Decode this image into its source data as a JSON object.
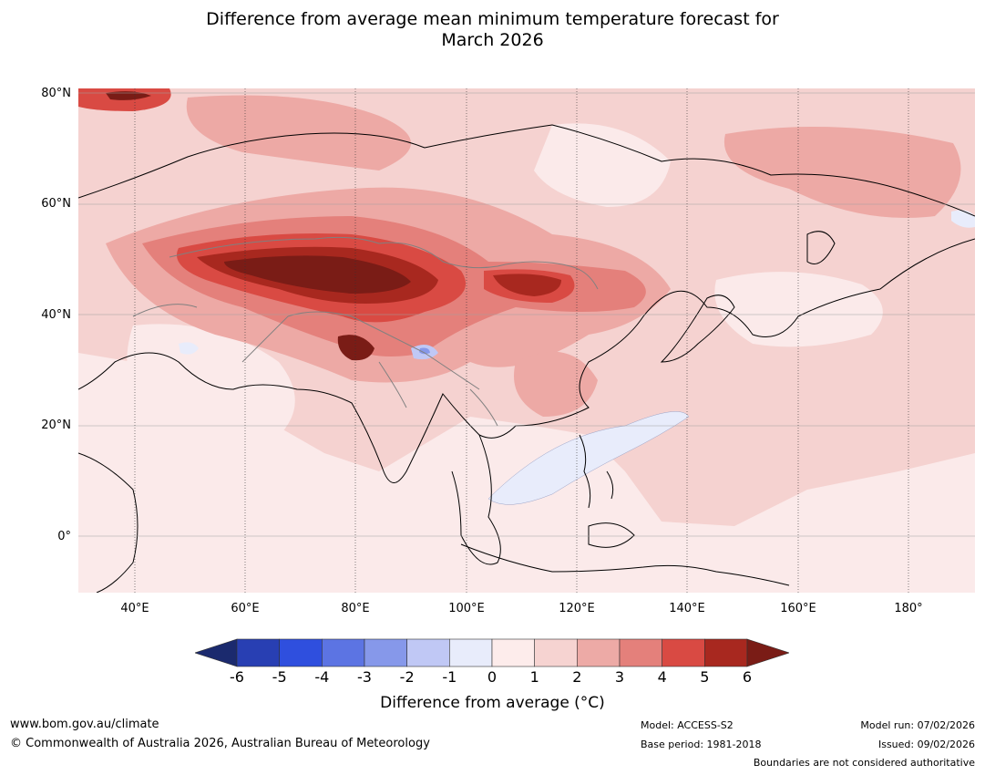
{
  "title": {
    "line1": "Difference from average mean minimum temperature forecast for",
    "line2": "March 2026"
  },
  "map": {
    "lat_labels": [
      "80°N",
      "60°N",
      "40°N",
      "20°N",
      "0°"
    ],
    "lon_labels": [
      "40°E",
      "60°E",
      "80°E",
      "100°E",
      "120°E",
      "140°E",
      "160°E",
      "180°"
    ],
    "ocean_color": "#fbeaea",
    "coast_color": "#000000",
    "border_color": "#808080"
  },
  "colorbar": {
    "ticks": [
      "-6",
      "-5",
      "-4",
      "-3",
      "-2",
      "-1",
      "0",
      "1",
      "2",
      "3",
      "4",
      "5",
      "6"
    ],
    "colors": [
      "#1b2a6e",
      "#283fb3",
      "#2f4fde",
      "#5c74e3",
      "#8698ea",
      "#c0c8f5",
      "#e8ecfb",
      "#fdeceb",
      "#f6d3d1",
      "#edaaa6",
      "#e4807b",
      "#d94a43",
      "#a8281f",
      "#7a1c16"
    ],
    "label": "Difference from average (°C)"
  },
  "footer": {
    "website": "www.bom.gov.au/climate",
    "copyright": "© Commonwealth of Australia 2026, Australian Bureau of Meteorology",
    "model": "Model: ACCESS-S2",
    "base_period": "Base period: 1981-2018",
    "model_run": "Model run: 07/02/2026",
    "issued": "Issued: 09/02/2026",
    "disclaimer": "Boundaries are not considered authoritative"
  }
}
